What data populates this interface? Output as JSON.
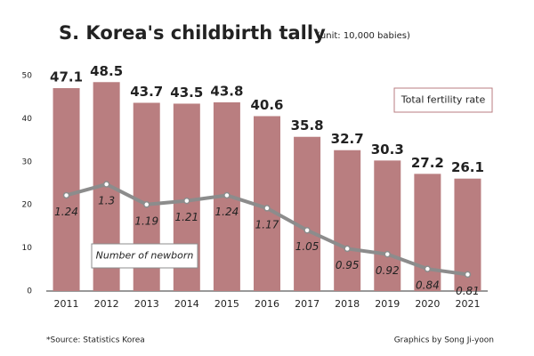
{
  "chart_data": {
    "type": "bar-line",
    "title": "S. Korea's childbirth tally",
    "subtitle": "(unit: 10,000 babies)",
    "source": "*Source: Statistics Korea",
    "credit": "Graphics by Song Ji-yoon",
    "categories": [
      "2011",
      "2012",
      "2013",
      "2014",
      "2015",
      "2016",
      "2017",
      "2018",
      "2019",
      "2020",
      "2021"
    ],
    "series": [
      {
        "name": "Total fertility rate",
        "type": "bar",
        "color": "#b97e80",
        "values": [
          47.1,
          48.5,
          43.7,
          43.5,
          43.8,
          40.6,
          35.8,
          32.7,
          30.3,
          27.2,
          26.1
        ]
      },
      {
        "name": "Number of newborn",
        "type": "line",
        "axis": "y2",
        "color": "#8c8c8c",
        "values": [
          1.24,
          1.3,
          1.19,
          1.21,
          1.24,
          1.17,
          1.05,
          0.95,
          0.92,
          0.84,
          0.81
        ]
      }
    ],
    "ylim": [
      0,
      50
    ],
    "yticks": [
      0,
      10,
      20,
      30,
      40,
      50
    ],
    "y2lim": [
      0.72,
      1.89
    ],
    "grid": false
  }
}
